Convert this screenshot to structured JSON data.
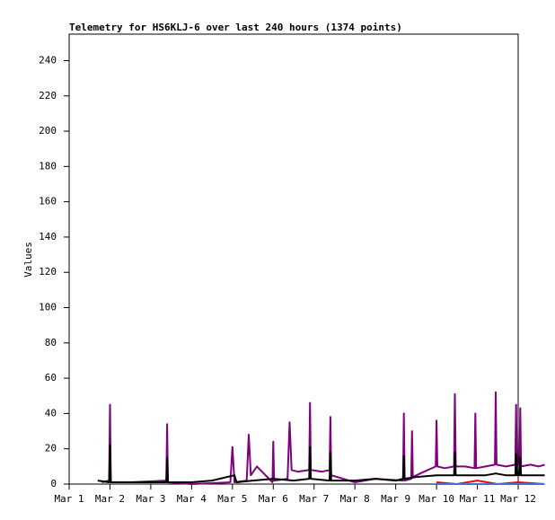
{
  "chart_data": {
    "type": "line",
    "title": "Telemetry for HS6KLJ-6 over last 240 hours (1374 points)",
    "y_label": "Values",
    "xlim": [
      0,
      11
    ],
    "ylim": [
      0,
      255
    ],
    "xticks": [
      {
        "value": 0,
        "label": "Mar 1"
      },
      {
        "value": 1,
        "label": "Mar 2"
      },
      {
        "value": 2,
        "label": "Mar 3"
      },
      {
        "value": 3,
        "label": "Mar 4"
      },
      {
        "value": 4,
        "label": "Mar 5"
      },
      {
        "value": 5,
        "label": "Mar 6"
      },
      {
        "value": 6,
        "label": "Mar 7"
      },
      {
        "value": 7,
        "label": "Mar 8"
      },
      {
        "value": 8,
        "label": "Mar 9"
      },
      {
        "value": 9,
        "label": "Mar 10"
      },
      {
        "value": 10,
        "label": "Mar 11"
      },
      {
        "value": 11,
        "label": "Mar 12"
      }
    ],
    "yticks": [
      0,
      20,
      40,
      60,
      80,
      100,
      120,
      140,
      160,
      180,
      200,
      220,
      240
    ],
    "grid": false,
    "series": [
      {
        "color": "#800080",
        "x": [
          0.8,
          0.98,
          1.0,
          1.02,
          1.5,
          2.38,
          2.4,
          2.42,
          3.0,
          3.95,
          4.0,
          4.05,
          4.35,
          4.4,
          4.45,
          4.6,
          4.98,
          5.0,
          5.02,
          5.35,
          5.4,
          5.45,
          5.6,
          5.88,
          5.9,
          5.92,
          6.2,
          6.38,
          6.4,
          6.42,
          7.0,
          7.5,
          8.18,
          8.2,
          8.22,
          8.38,
          8.4,
          8.42,
          8.6,
          8.98,
          9.0,
          9.02,
          9.2,
          9.43,
          9.45,
          9.47,
          9.7,
          9.93,
          9.95,
          9.97,
          10.2,
          10.43,
          10.45,
          10.47,
          10.7,
          10.93,
          10.95,
          10.97,
          11.03,
          11.05,
          11.07,
          11.3,
          11.5,
          11.65
        ],
        "values": [
          1,
          2,
          45,
          1,
          1,
          2,
          34,
          1,
          0,
          1,
          21,
          1,
          2,
          28,
          5,
          10,
          1,
          24,
          2,
          3,
          35,
          8,
          7,
          8,
          46,
          8,
          7,
          8,
          38,
          5,
          1,
          3,
          2,
          40,
          2,
          3,
          30,
          4,
          6,
          10,
          36,
          10,
          9,
          10,
          51,
          10,
          10,
          9,
          40,
          9,
          10,
          11,
          52,
          11,
          10,
          11,
          45,
          10,
          11,
          43,
          10,
          11,
          10,
          11
        ]
      },
      {
        "color": "#000000",
        "x": [
          0.7,
          0.98,
          1.0,
          1.02,
          1.5,
          2.38,
          2.4,
          2.42,
          3.0,
          3.5,
          4.05,
          4.1,
          4.5,
          5.0,
          5.5,
          5.88,
          5.9,
          5.92,
          6.38,
          6.4,
          6.42,
          7.0,
          7.5,
          8.0,
          8.18,
          8.2,
          8.22,
          8.5,
          9.0,
          9.43,
          9.45,
          9.47,
          9.95,
          10.2,
          10.45,
          10.7,
          10.93,
          10.95,
          10.97,
          11.03,
          11.05,
          11.07,
          11.3,
          11.65
        ],
        "values": [
          2,
          1,
          22,
          1,
          1,
          1,
          15,
          1,
          1,
          2,
          5,
          1,
          2,
          3,
          2,
          3,
          21,
          3,
          2,
          18,
          2,
          2,
          3,
          2,
          3,
          16,
          3,
          4,
          5,
          5,
          18,
          5,
          5,
          5,
          6,
          5,
          5,
          17,
          5,
          5,
          15,
          5,
          5,
          5
        ]
      },
      {
        "color": "#ff0000",
        "x": [
          9.0,
          9.5,
          10.0,
          10.5,
          11.0,
          11.65
        ],
        "values": [
          1,
          0,
          2,
          0,
          1,
          0
        ]
      },
      {
        "color": "#4a6fd4",
        "x": [
          9.0,
          11.65
        ],
        "values": [
          0,
          0
        ]
      }
    ]
  }
}
